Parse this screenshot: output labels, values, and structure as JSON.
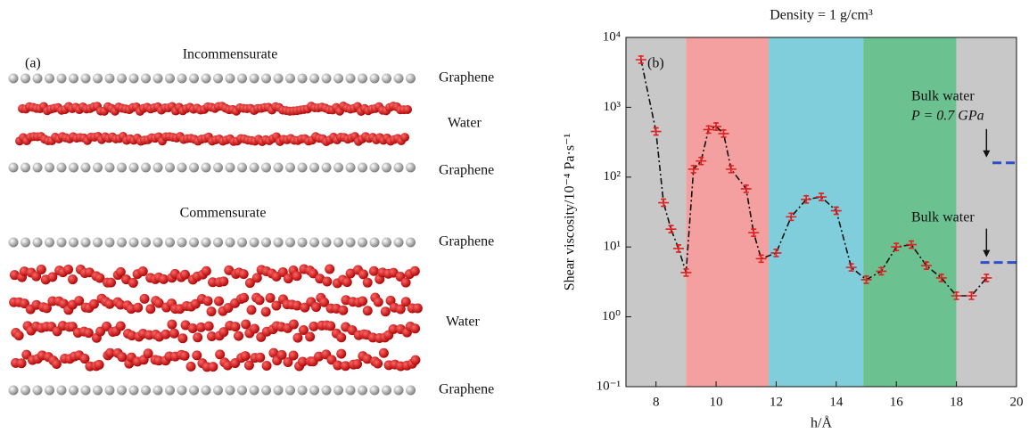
{
  "panel_a": {
    "label": "(a)",
    "incommensurate": {
      "title": "Incommensurate",
      "top": "Graphene",
      "middle": "Water",
      "bottom": "Graphene"
    },
    "commensurate": {
      "title": "Commensurate",
      "top": "Graphene",
      "middle": "Water",
      "bottom": "Graphene"
    }
  },
  "chart_data": {
    "type": "line",
    "title": "Density = 1 g/cm³",
    "panel_label": "(b)",
    "xlabel": "h/Å",
    "ylabel": "Shear viscosity/10⁻⁴ Pa·s⁻¹",
    "x": [
      7.5,
      8.0,
      8.25,
      8.5,
      8.75,
      9.0,
      9.25,
      9.5,
      9.75,
      10.0,
      10.25,
      10.5,
      11.0,
      11.25,
      11.5,
      12.0,
      12.5,
      13.0,
      13.5,
      14.0,
      14.5,
      15.0,
      15.5,
      16.0,
      16.5,
      17.0,
      17.5,
      18.0,
      18.5,
      19.0
    ],
    "values": [
      4800,
      450,
      43,
      18,
      9.5,
      4.3,
      130,
      170,
      480,
      530,
      420,
      130,
      68,
      16,
      6.8,
      8.2,
      27,
      48,
      52,
      33,
      5.1,
      3.4,
      4.5,
      10,
      10.8,
      5.4,
      3.6,
      2.0,
      2.0,
      3.6
    ],
    "color": "#e02020",
    "line_color": "#111111",
    "xlim": [
      7,
      20
    ],
    "xticks": [
      8,
      10,
      12,
      14,
      16,
      18,
      20
    ],
    "ylim": [
      0.1,
      10000
    ],
    "log_y": true,
    "yticks": [
      {
        "value": 0.1,
        "label": "10⁻¹"
      },
      {
        "value": 1,
        "label": "10⁰"
      },
      {
        "value": 10,
        "label": "10¹"
      },
      {
        "value": 100,
        "label": "10²"
      },
      {
        "value": 1000,
        "label": "10³"
      },
      {
        "value": 10000,
        "label": "10⁴"
      }
    ],
    "regions": [
      {
        "from": 7,
        "to": 9,
        "color": "#c8c8c8"
      },
      {
        "from": 9,
        "to": 11.75,
        "color": "#f4a0a0"
      },
      {
        "from": 11.75,
        "to": 14.9,
        "color": "#80cedb"
      },
      {
        "from": 14.9,
        "to": 18,
        "color": "#6cc190"
      },
      {
        "from": 18,
        "to": 20,
        "color": "#c8c8c8"
      }
    ],
    "reference_lines": [
      {
        "y": 160,
        "from": 19.2,
        "to": 20,
        "color": "#2e4fc9",
        "label": "Bulk water",
        "sublabel": "P = 0.7 GPa"
      },
      {
        "y": 6,
        "from": 18.8,
        "to": 20,
        "color": "#2e4fc9",
        "label": "Bulk water"
      }
    ]
  }
}
